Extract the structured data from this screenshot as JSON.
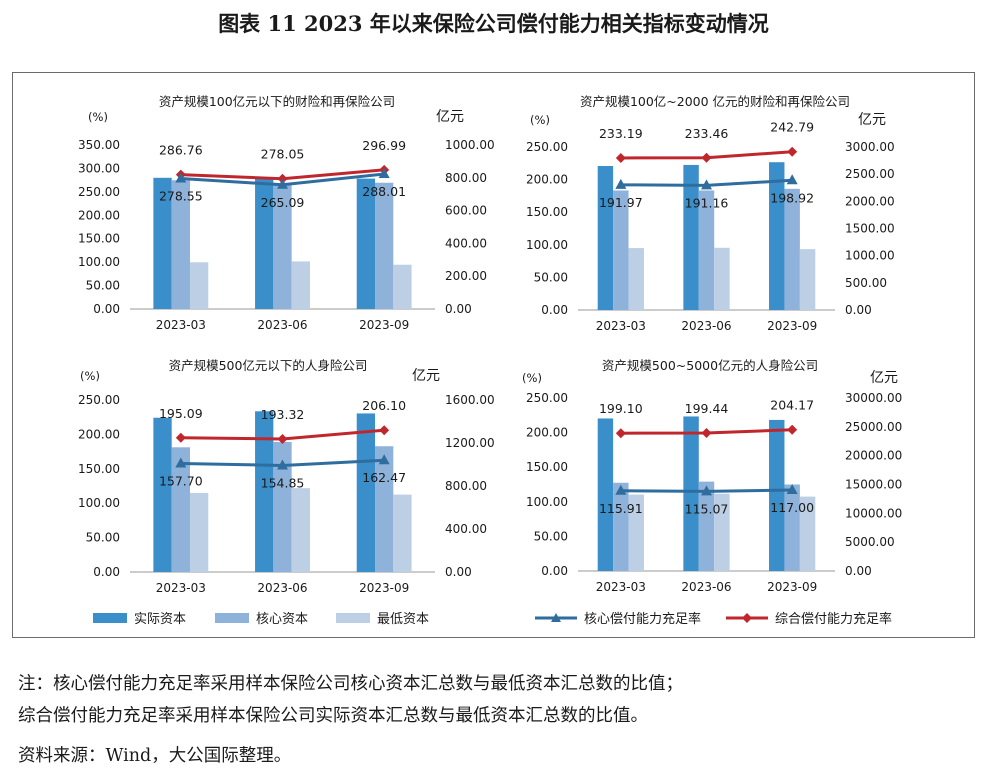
{
  "figure": {
    "title": "图表 11  2023 年以来保险公司偿付能力相关指标变动情况",
    "note_line1": "注：核心偿付能力充足率采用样本保险公司核心资本汇总数与最低资本汇总数的比值；",
    "note_line2": "综合偿付能力充足率采用样本保险公司实际资本汇总数与最低资本汇总数的比值。",
    "source": "资料来源：Wind，大公国际整理。"
  },
  "colors": {
    "actual": "#3a8fcb",
    "core": "#8fb2db",
    "min": "#bccfe5",
    "core_ratio": "#2e6d9e",
    "total_ratio": "#c0272d"
  },
  "legend": {
    "actual": "实际资本",
    "core": "核心资本",
    "min": "最低资本",
    "core_ratio": "核心偿付能力充足率",
    "total_ratio": "综合偿付能力充足率"
  },
  "chart_data": [
    {
      "type": "bar",
      "title": "资产规模100亿元以下的财险和再保险公司",
      "left_unit": "(%)",
      "right_unit": "亿元",
      "categories": [
        "2023-03",
        "2023-06",
        "2023-09"
      ],
      "left_axis": {
        "min": 0,
        "max": 350,
        "ticks": [
          "0.00",
          "50.00",
          "100.00",
          "150.00",
          "200.00",
          "250.00",
          "300.00",
          "350.00"
        ]
      },
      "right_axis": {
        "min": 0,
        "max": 1000,
        "ticks": [
          "0.00",
          "200.00",
          "400.00",
          "600.00",
          "800.00",
          "1000.00"
        ]
      },
      "series": [
        {
          "name": "实际资本",
          "axis": "right",
          "values": [
            800,
            795,
            795
          ]
        },
        {
          "name": "核心资本",
          "axis": "right",
          "values": [
            785,
            760,
            770
          ]
        },
        {
          "name": "最低资本",
          "axis": "right",
          "values": [
            285,
            290,
            270
          ]
        },
        {
          "name": "核心偿付能力充足率",
          "axis": "left",
          "values": [
            278.55,
            265.09,
            288.01
          ],
          "labels": [
            "278.55",
            "265.09",
            "288.01"
          ]
        },
        {
          "name": "综合偿付能力充足率",
          "axis": "left",
          "values": [
            286.76,
            278.05,
            296.99
          ],
          "labels": [
            "286.76",
            "278.05",
            "296.99"
          ]
        }
      ]
    },
    {
      "type": "bar",
      "title": "资产规模100亿~2000 亿元的财险和再保险公司",
      "left_unit": "(%)",
      "right_unit": "亿元",
      "categories": [
        "2023-03",
        "2023-06",
        "2023-09"
      ],
      "left_axis": {
        "min": 0,
        "max": 250,
        "ticks": [
          "0.00",
          "50.00",
          "100.00",
          "150.00",
          "200.00",
          "250.00"
        ]
      },
      "right_axis": {
        "min": 0,
        "max": 3000,
        "ticks": [
          "0.00",
          "500.00",
          "1000.00",
          "1500.00",
          "2000.00",
          "2500.00",
          "3000.00"
        ]
      },
      "series": [
        {
          "name": "实际资本",
          "axis": "right",
          "values": [
            2650,
            2670,
            2720
          ]
        },
        {
          "name": "核心资本",
          "axis": "right",
          "values": [
            2200,
            2200,
            2230
          ]
        },
        {
          "name": "最低资本",
          "axis": "right",
          "values": [
            1140,
            1145,
            1120
          ]
        },
        {
          "name": "核心偿付能力充足率",
          "axis": "left",
          "values": [
            191.97,
            191.16,
            198.92
          ],
          "labels": [
            "191.97",
            "191.16",
            "198.92"
          ]
        },
        {
          "name": "综合偿付能力充足率",
          "axis": "left",
          "values": [
            233.19,
            233.46,
            242.79
          ],
          "labels": [
            "233.19",
            "233.46",
            "242.79"
          ]
        }
      ]
    },
    {
      "type": "bar",
      "title": "资产规模500亿元以下的人身险公司",
      "left_unit": "(%)",
      "right_unit": "亿元",
      "categories": [
        "2023-03",
        "2023-06",
        "2023-09"
      ],
      "left_axis": {
        "min": 0,
        "max": 250,
        "ticks": [
          "0.00",
          "50.00",
          "100.00",
          "150.00",
          "200.00",
          "250.00"
        ]
      },
      "right_axis": {
        "min": 0,
        "max": 1600,
        "ticks": [
          "0.00",
          "400.00",
          "800.00",
          "1200.00",
          "1600.00"
        ]
      },
      "series": [
        {
          "name": "实际资本",
          "axis": "right",
          "values": [
            1435,
            1495,
            1475
          ]
        },
        {
          "name": "核心资本",
          "axis": "right",
          "values": [
            1160,
            1210,
            1170
          ]
        },
        {
          "name": "最低资本",
          "axis": "right",
          "values": [
            735,
            780,
            720
          ]
        },
        {
          "name": "核心偿付能力充足率",
          "axis": "left",
          "values": [
            157.7,
            154.85,
            162.47
          ],
          "labels": [
            "157.70",
            "154.85",
            "162.47"
          ]
        },
        {
          "name": "综合偿付能力充足率",
          "axis": "left",
          "values": [
            195.09,
            193.32,
            206.1
          ],
          "labels": [
            "195.09",
            "193.32",
            "206.10"
          ]
        }
      ]
    },
    {
      "type": "bar",
      "title": "资产规模500~5000亿元的人身险公司",
      "left_unit": "(%)",
      "right_unit": "亿元",
      "categories": [
        "2023-03",
        "2023-06",
        "2023-09"
      ],
      "left_axis": {
        "min": 0,
        "max": 250,
        "ticks": [
          "0.00",
          "50.00",
          "100.00",
          "150.00",
          "200.00",
          "250.00"
        ]
      },
      "right_axis": {
        "min": 0,
        "max": 30000,
        "ticks": [
          "0.00",
          "5000.00",
          "10000.00",
          "15000.00",
          "20000.00",
          "25000.00",
          "30000.00"
        ]
      },
      "series": [
        {
          "name": "实际资本",
          "axis": "right",
          "values": [
            26450,
            26800,
            26200
          ]
        },
        {
          "name": "核心资本",
          "axis": "right",
          "values": [
            15300,
            15500,
            15000
          ]
        },
        {
          "name": "最低资本",
          "axis": "right",
          "values": [
            13250,
            13400,
            12900
          ]
        },
        {
          "name": "核心偿付能力充足率",
          "axis": "left",
          "values": [
            115.91,
            115.07,
            117.0
          ],
          "labels": [
            "115.91",
            "115.07",
            "117.00"
          ]
        },
        {
          "name": "综合偿付能力充足率",
          "axis": "left",
          "values": [
            199.1,
            199.44,
            204.17
          ],
          "labels": [
            "199.10",
            "199.44",
            "204.17"
          ]
        }
      ]
    }
  ]
}
